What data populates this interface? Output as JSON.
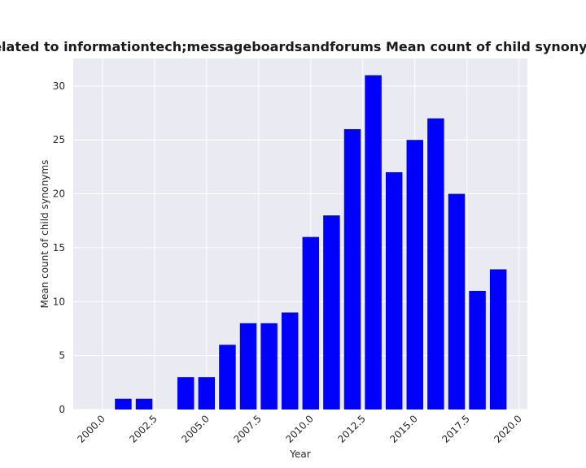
{
  "chart_data": {
    "type": "bar",
    "title": "Software related to informationtech;messageboardsandforums Mean count of child synonyms in privacy",
    "xlabel": "Year",
    "ylabel": "Mean count of child synonyms",
    "x": [
      2001,
      2002,
      2004,
      2005,
      2006,
      2007,
      2008,
      2009,
      2010,
      2011,
      2012,
      2013,
      2014,
      2015,
      2016,
      2017,
      2018,
      2019
    ],
    "values": [
      1,
      1,
      3,
      3,
      6,
      8,
      8,
      9,
      16,
      18,
      26,
      31,
      22,
      25,
      27,
      20,
      11,
      13
    ],
    "xlim": [
      1998.6,
      2020.4
    ],
    "ylim": [
      0,
      32.55
    ],
    "xticks": [
      "2000.0",
      "2002.5",
      "2005.0",
      "2007.5",
      "2010.0",
      "2012.5",
      "2015.0",
      "2017.5",
      "2020.0"
    ],
    "yticks": [
      "0",
      "5",
      "10",
      "15",
      "20",
      "25",
      "30"
    ],
    "bar_color": "#0000ff",
    "background_color": "#eaeaf2",
    "grid_color": "#ffffff",
    "grid": true,
    "legend": false
  }
}
